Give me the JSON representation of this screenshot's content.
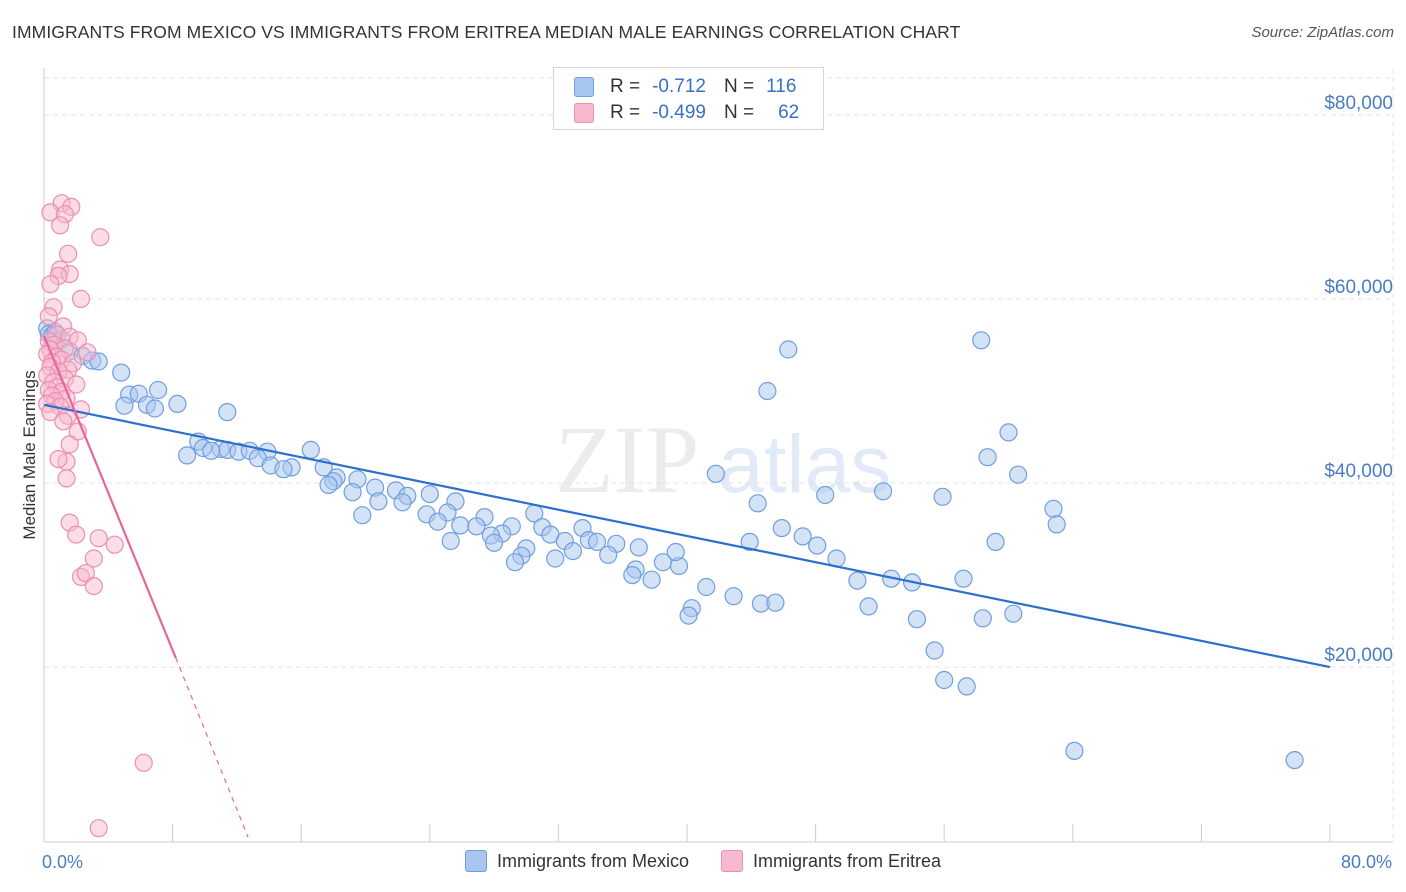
{
  "title": "IMMIGRANTS FROM MEXICO VS IMMIGRANTS FROM ERITREA MEDIAN MALE EARNINGS CORRELATION CHART",
  "source": "Source: ZipAtlas.com",
  "watermark": {
    "zip": "ZIP",
    "atlas": "atlas"
  },
  "colors": {
    "mexico_fill": "#a9c6ee",
    "mexico_stroke": "#6f9fe0",
    "mexico_line": "#2c6fce",
    "eritrea_fill": "#f7b9cf",
    "eritrea_stroke": "#ec8fb0",
    "eritrea_line": "#e5679a",
    "axis_label": "#4a7cc4",
    "grid": "#e4e4e4"
  },
  "stats": [
    {
      "r_label": "R =",
      "r_value": "-0.712",
      "n_label": "N =",
      "n_value": "116"
    },
    {
      "r_label": "R =",
      "r_value": "-0.499",
      "n_label": "N =",
      "n_value": "62"
    }
  ],
  "chart_data": {
    "type": "scatter",
    "title": "IMMIGRANTS FROM MEXICO VS IMMIGRANTS FROM ERITREA MEDIAN MALE EARNINGS CORRELATION CHART",
    "xlabel": "",
    "ylabel": "Median Male Earnings",
    "xlim": [
      0,
      80
    ],
    "ylim": [
      1000,
      84000
    ],
    "x_tick_labels": [
      "0.0%",
      "80.0%"
    ],
    "y_ticks": [
      20000,
      40000,
      60000,
      80000
    ],
    "y_tick_labels": [
      "$20,000",
      "$40,000",
      "$60,000",
      "$80,000"
    ],
    "grid": true,
    "legend_position": "bottom",
    "series": [
      {
        "name": "Immigrants from Mexico",
        "color": "#a9c6ee",
        "trendline": {
          "x": [
            0,
            80
          ],
          "y": [
            48500,
            20000
          ]
        },
        "points": [
          [
            0.2,
            56800
          ],
          [
            0.3,
            56200
          ],
          [
            0.5,
            56000
          ],
          [
            0.7,
            56400
          ],
          [
            1.1,
            55600
          ],
          [
            1.6,
            54300
          ],
          [
            2.4,
            53800
          ],
          [
            3.0,
            53300
          ],
          [
            3.4,
            53200
          ],
          [
            4.8,
            52000
          ],
          [
            7.1,
            50100
          ],
          [
            5.3,
            49600
          ],
          [
            5.9,
            49700
          ],
          [
            8.3,
            48600
          ],
          [
            6.4,
            48500
          ],
          [
            5.0,
            48400
          ],
          [
            6.9,
            48100
          ],
          [
            11.4,
            47700
          ],
          [
            9.6,
            44500
          ],
          [
            9.9,
            43800
          ],
          [
            11.0,
            43700
          ],
          [
            11.4,
            43600
          ],
          [
            10.4,
            43500
          ],
          [
            12.1,
            43400
          ],
          [
            12.8,
            43500
          ],
          [
            13.9,
            43400
          ],
          [
            8.9,
            43000
          ],
          [
            13.3,
            42700
          ],
          [
            16.6,
            43600
          ],
          [
            14.1,
            41900
          ],
          [
            15.4,
            41700
          ],
          [
            14.9,
            41500
          ],
          [
            17.4,
            41700
          ],
          [
            18.2,
            40600
          ],
          [
            19.5,
            40400
          ],
          [
            18.0,
            40200
          ],
          [
            17.7,
            39800
          ],
          [
            19.2,
            39000
          ],
          [
            20.6,
            39500
          ],
          [
            21.9,
            39200
          ],
          [
            22.6,
            38600
          ],
          [
            24.0,
            38800
          ],
          [
            25.6,
            38000
          ],
          [
            20.8,
            38000
          ],
          [
            22.3,
            37900
          ],
          [
            25.1,
            36800
          ],
          [
            19.8,
            36500
          ],
          [
            23.8,
            36600
          ],
          [
            27.4,
            36300
          ],
          [
            24.5,
            35800
          ],
          [
            25.9,
            35400
          ],
          [
            26.9,
            35300
          ],
          [
            29.1,
            35300
          ],
          [
            30.5,
            36700
          ],
          [
            31.0,
            35200
          ],
          [
            28.5,
            34500
          ],
          [
            31.5,
            34400
          ],
          [
            33.5,
            35100
          ],
          [
            27.8,
            34300
          ],
          [
            25.3,
            33700
          ],
          [
            28.0,
            33500
          ],
          [
            32.4,
            33700
          ],
          [
            30.0,
            32900
          ],
          [
            33.9,
            33800
          ],
          [
            34.4,
            33600
          ],
          [
            35.6,
            33400
          ],
          [
            32.9,
            32600
          ],
          [
            29.7,
            32100
          ],
          [
            35.1,
            32200
          ],
          [
            31.8,
            31800
          ],
          [
            29.3,
            31400
          ],
          [
            38.5,
            31400
          ],
          [
            36.8,
            30600
          ],
          [
            39.5,
            31000
          ],
          [
            36.6,
            30000
          ],
          [
            37.8,
            29500
          ],
          [
            41.2,
            28700
          ],
          [
            40.3,
            26400
          ],
          [
            42.9,
            27700
          ],
          [
            40.1,
            25600
          ],
          [
            44.6,
            26900
          ],
          [
            45.5,
            27000
          ],
          [
            41.8,
            41000
          ],
          [
            44.4,
            37800
          ],
          [
            45.9,
            35100
          ],
          [
            48.1,
            33200
          ],
          [
            47.2,
            34200
          ],
          [
            49.3,
            31800
          ],
          [
            50.6,
            29400
          ],
          [
            52.7,
            29600
          ],
          [
            54.0,
            29200
          ],
          [
            51.3,
            26600
          ],
          [
            54.3,
            25200
          ],
          [
            55.4,
            21800
          ],
          [
            58.4,
            25300
          ],
          [
            57.2,
            29600
          ],
          [
            60.6,
            40900
          ],
          [
            58.7,
            42800
          ],
          [
            60.3,
            25800
          ],
          [
            62.8,
            37200
          ],
          [
            56.0,
            18600
          ],
          [
            57.4,
            17900
          ],
          [
            64.1,
            10900
          ],
          [
            77.8,
            9900
          ],
          [
            45.0,
            50000
          ],
          [
            46.3,
            54500
          ],
          [
            55.9,
            38500
          ],
          [
            48.6,
            38700
          ],
          [
            59.2,
            33600
          ],
          [
            63.0,
            35500
          ],
          [
            52.2,
            39100
          ],
          [
            58.3,
            55500
          ],
          [
            60.0,
            45500
          ],
          [
            43.9,
            33600
          ],
          [
            39.3,
            32500
          ],
          [
            37.0,
            33000
          ]
        ]
      },
      {
        "name": "Immigrants from Eritrea",
        "color": "#f7b9cf",
        "trendline": {
          "x": [
            0,
            8.2
          ],
          "y": [
            56000,
            21000
          ],
          "extension": {
            "x": [
              8.2,
              12.7
            ],
            "y": [
              21000,
              1500
            ]
          }
        },
        "points": [
          [
            1.1,
            70400
          ],
          [
            1.7,
            70000
          ],
          [
            0.4,
            69400
          ],
          [
            1.3,
            69200
          ],
          [
            1.0,
            68000
          ],
          [
            3.5,
            66700
          ],
          [
            1.5,
            64900
          ],
          [
            1.0,
            63200
          ],
          [
            1.6,
            62700
          ],
          [
            0.9,
            62500
          ],
          [
            0.4,
            61600
          ],
          [
            2.3,
            60000
          ],
          [
            0.6,
            59100
          ],
          [
            0.3,
            58100
          ],
          [
            1.2,
            57000
          ],
          [
            0.8,
            56100
          ],
          [
            1.6,
            55900
          ],
          [
            2.1,
            55500
          ],
          [
            0.3,
            55400
          ],
          [
            0.6,
            55000
          ],
          [
            1.3,
            54600
          ],
          [
            0.4,
            54500
          ],
          [
            2.7,
            54200
          ],
          [
            0.2,
            54000
          ],
          [
            0.8,
            53700
          ],
          [
            1.1,
            53400
          ],
          [
            0.5,
            53100
          ],
          [
            1.8,
            53000
          ],
          [
            0.4,
            52600
          ],
          [
            1.5,
            52300
          ],
          [
            0.9,
            52100
          ],
          [
            0.2,
            51700
          ],
          [
            1.3,
            51300
          ],
          [
            0.6,
            51000
          ],
          [
            2.0,
            50700
          ],
          [
            0.8,
            50400
          ],
          [
            0.3,
            50100
          ],
          [
            1.1,
            49900
          ],
          [
            0.5,
            49500
          ],
          [
            1.4,
            49200
          ],
          [
            0.7,
            48900
          ],
          [
            0.2,
            48600
          ],
          [
            1.0,
            48300
          ],
          [
            2.3,
            48000
          ],
          [
            0.4,
            47700
          ],
          [
            1.5,
            47300
          ],
          [
            1.2,
            46700
          ],
          [
            2.1,
            45600
          ],
          [
            1.6,
            44200
          ],
          [
            1.4,
            42300
          ],
          [
            1.4,
            40500
          ],
          [
            1.6,
            35700
          ],
          [
            2.0,
            34400
          ],
          [
            3.1,
            31800
          ],
          [
            2.3,
            29800
          ],
          [
            2.6,
            30200
          ],
          [
            4.4,
            33300
          ],
          [
            3.4,
            34000
          ],
          [
            3.1,
            28800
          ],
          [
            6.2,
            9600
          ],
          [
            3.4,
            2500
          ],
          [
            0.9,
            42600
          ]
        ]
      }
    ]
  },
  "legend": [
    {
      "label": "Immigrants from Mexico"
    },
    {
      "label": "Immigrants from Eritrea"
    }
  ]
}
